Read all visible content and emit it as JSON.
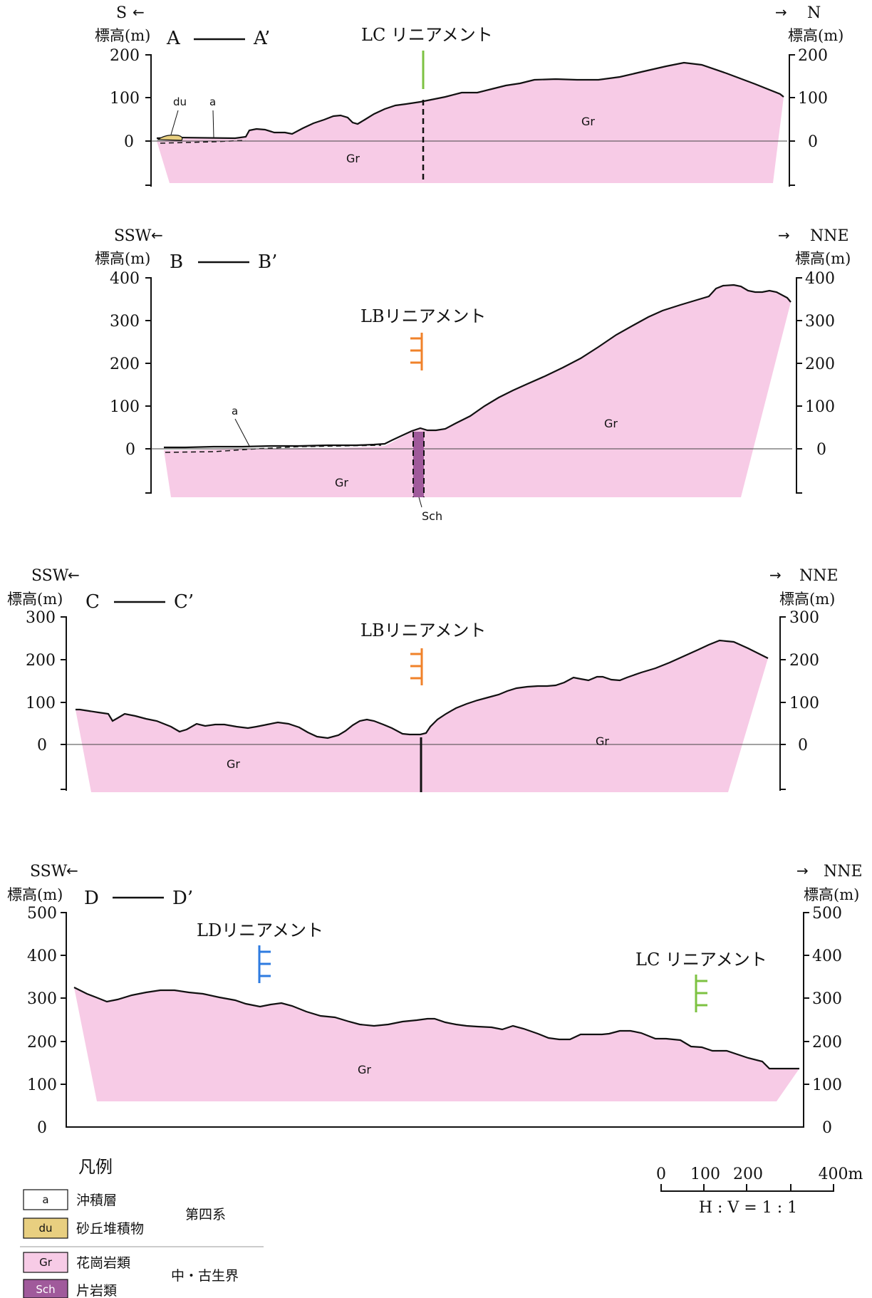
{
  "figure_type": "geologic cross-sections along lineaments",
  "colors": {
    "granite_fill": "#F7CBE6",
    "schist_fill": "#A05A9B",
    "dune_fill": "#E8CF80",
    "lc_lineament": "#7DC242",
    "lb_lineament": "#F0822A",
    "ld_lineament": "#2E7BE0",
    "outline": "#111111"
  },
  "sections": [
    {
      "id": "A",
      "label_start": "A",
      "label_end": "A’",
      "dir_left": "S",
      "dir_right": "N",
      "axis_unit": "標高(m)",
      "y_ticks": [
        "0",
        "100",
        "200"
      ],
      "lineament_label": "LC リニアメント",
      "unit_labels": {
        "gr_left": "Gr",
        "gr_right": "Gr",
        "dune": "du",
        "alluvium": "a"
      }
    },
    {
      "id": "B",
      "label_start": "B",
      "label_end": "B’",
      "dir_left": "SSW",
      "dir_right": "NNE",
      "axis_unit": "標高(m)",
      "y_ticks": [
        "0",
        "100",
        "200",
        "300",
        "400"
      ],
      "lineament_label": "LBリニアメント",
      "unit_labels": {
        "gr_left": "Gr",
        "gr_right": "Gr",
        "alluvium": "a",
        "schist": "Sch"
      }
    },
    {
      "id": "C",
      "label_start": "C",
      "label_end": "C’",
      "dir_left": "SSW",
      "dir_right": "NNE",
      "axis_unit": "標高(m)",
      "y_ticks": [
        "0",
        "100",
        "200",
        "300"
      ],
      "lineament_label": "LBリニアメント",
      "unit_labels": {
        "gr_left": "Gr",
        "gr_right": "Gr"
      }
    },
    {
      "id": "D",
      "label_start": "D",
      "label_end": "D’",
      "dir_left": "SSW",
      "dir_right": "NNE",
      "axis_unit": "標高(m)",
      "y_ticks": [
        "0",
        "100",
        "200",
        "300",
        "400",
        "500"
      ],
      "lineament_labels": [
        "LDリニアメント",
        "LC リニアメント"
      ],
      "unit_labels": {
        "gr": "Gr"
      }
    }
  ],
  "legend": {
    "title": "凡例",
    "items": [
      {
        "code": "a",
        "name": "沖積層",
        "color": "#FFFFFF"
      },
      {
        "code": "du",
        "name": "砂丘堆積物",
        "color": "#E8CF80"
      },
      {
        "code": "Gr",
        "name": "花崗岩類",
        "color": "#F7CBE6"
      },
      {
        "code": "Sch",
        "name": "片岩類",
        "color": "#A05A9B"
      }
    ],
    "groups": [
      "第四系",
      "中・古生界"
    ]
  },
  "scale_bar": {
    "ticks": [
      "0",
      "100",
      "200",
      "400m"
    ],
    "ratio": "H : V = 1 : 1"
  }
}
